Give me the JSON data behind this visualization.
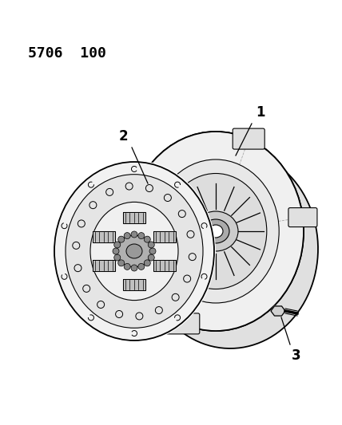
{
  "title_text": "5706  100",
  "title_fontsize": 13,
  "title_fontweight": "bold",
  "background_color": "#ffffff",
  "label1": "1",
  "label2": "2",
  "label3": "3"
}
